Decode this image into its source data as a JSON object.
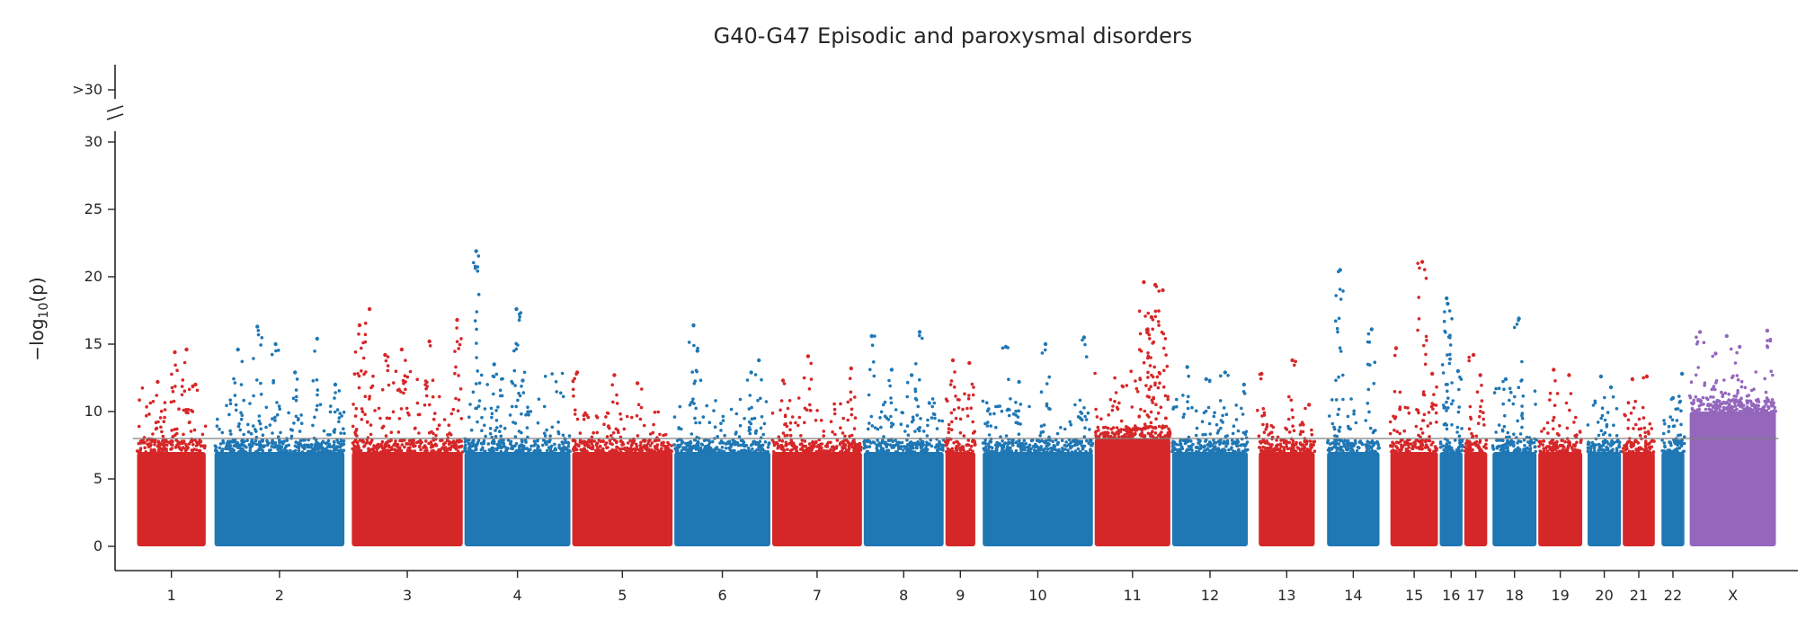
{
  "chart_data": {
    "type": "scatter",
    "subtype": "manhattan",
    "title": "G40-G47 Episodic and paroxysmal disorders",
    "xlabel": "",
    "ylabel": "−log10(p)",
    "ylabel_main": "−log",
    "ylabel_sub": "10",
    "ylabel_tail": "(p)",
    "ylim": [
      0,
      30
    ],
    "yticks": [
      "0",
      "5",
      "10",
      "15",
      "20",
      "25",
      "30"
    ],
    "y_break_label": ">30",
    "threshold": 8,
    "grid": false,
    "colors": {
      "red": "#d62728",
      "blue": "#1f77b4",
      "purple": "#9467bd",
      "threshold_line": "#7f7f7f",
      "axis": "#262626"
    },
    "chromosomes": [
      {
        "label": "1",
        "color": "red",
        "span": [
          0.0,
          1.0
        ],
        "band_max": 7,
        "cloud_max": 12,
        "peaks": [
          [
            0.55,
            14.4
          ],
          [
            0.72,
            14.6
          ],
          [
            0.3,
            12.2
          ],
          [
            0.85,
            12.0
          ]
        ]
      },
      {
        "label": "2",
        "color": "blue",
        "span": [
          1.1,
          2.97
        ],
        "band_max": 7,
        "cloud_max": 11,
        "peaks": [
          [
            0.33,
            16.3
          ],
          [
            0.18,
            14.6
          ],
          [
            0.47,
            15.0
          ],
          [
            0.62,
            12.9
          ],
          [
            0.79,
            15.4
          ],
          [
            0.93,
            12.0
          ]
        ]
      },
      {
        "label": "3",
        "color": "red",
        "span": [
          3.05,
          4.65
        ],
        "band_max": 7,
        "cloud_max": 13,
        "peaks": [
          [
            0.07,
            16.4
          ],
          [
            0.16,
            17.6
          ],
          [
            0.45,
            14.6
          ],
          [
            0.7,
            15.2
          ],
          [
            0.95,
            16.8
          ],
          [
            0.3,
            14.2
          ]
        ]
      },
      {
        "label": "4",
        "color": "blue",
        "span": [
          4.65,
          6.18
        ],
        "band_max": 7,
        "cloud_max": 13,
        "peaks": [
          [
            0.11,
            21.9
          ],
          [
            0.49,
            17.6
          ],
          [
            0.28,
            13.5
          ],
          [
            0.55,
            12.3
          ]
        ]
      },
      {
        "label": "5",
        "color": "red",
        "span": [
          6.18,
          7.63
        ],
        "band_max": 7,
        "cloud_max": 10,
        "peaks": [
          [
            0.05,
            12.9
          ],
          [
            0.42,
            12.7
          ],
          [
            0.65,
            12.1
          ]
        ]
      },
      {
        "label": "6",
        "color": "blue",
        "span": [
          7.63,
          9.02
        ],
        "band_max": 7,
        "cloud_max": 11,
        "peaks": [
          [
            0.2,
            16.4
          ],
          [
            0.24,
            14.5
          ],
          [
            0.88,
            13.8
          ],
          [
            0.8,
            12.9
          ]
        ]
      },
      {
        "label": "7",
        "color": "red",
        "span": [
          9.02,
          10.32
        ],
        "band_max": 7,
        "cloud_max": 11,
        "peaks": [
          [
            0.4,
            14.1
          ],
          [
            0.12,
            12.3
          ],
          [
            0.88,
            13.2
          ]
        ]
      },
      {
        "label": "8",
        "color": "blue",
        "span": [
          10.32,
          11.48
        ],
        "band_max": 7,
        "cloud_max": 11,
        "peaks": [
          [
            0.1,
            15.6
          ],
          [
            0.35,
            13.1
          ],
          [
            0.6,
            12.7
          ],
          [
            0.7,
            15.9
          ]
        ]
      },
      {
        "label": "9",
        "color": "red",
        "span": [
          11.48,
          11.93
        ],
        "band_max": 7,
        "cloud_max": 12,
        "peaks": [
          [
            0.25,
            13.8
          ],
          [
            0.8,
            13.6
          ]
        ]
      },
      {
        "label": "10",
        "color": "blue",
        "span": [
          12.01,
          13.6
        ],
        "band_max": 7,
        "cloud_max": 11,
        "peaks": [
          [
            0.21,
            14.8
          ],
          [
            0.33,
            12.2
          ],
          [
            0.57,
            15.0
          ],
          [
            0.92,
            15.5
          ]
        ]
      },
      {
        "label": "11",
        "color": "red",
        "span": [
          13.6,
          14.7
        ],
        "band_max": 8,
        "cloud_max": 13,
        "peaks": [
          [
            0.65,
            19.6
          ],
          [
            0.8,
            19.4
          ],
          [
            0.75,
            17.0
          ],
          [
            0.7,
            16.1
          ],
          [
            0.9,
            19.0
          ]
        ]
      },
      {
        "label": "12",
        "color": "blue",
        "span": [
          14.7,
          15.8
        ],
        "band_max": 7,
        "cloud_max": 11,
        "peaks": [
          [
            0.2,
            13.3
          ],
          [
            0.45,
            12.4
          ],
          [
            0.7,
            12.9
          ],
          [
            0.95,
            12.0
          ]
        ]
      },
      {
        "label": "13",
        "color": "red",
        "span": [
          15.93,
          16.75
        ],
        "band_max": 7,
        "cloud_max": 10,
        "peaks": [
          [
            0.05,
            12.8
          ],
          [
            0.6,
            13.8
          ],
          [
            0.9,
            10.5
          ]
        ]
      },
      {
        "label": "14",
        "color": "blue",
        "span": [
          16.9,
          17.67
        ],
        "band_max": 7,
        "cloud_max": 11,
        "peaks": [
          [
            0.25,
            20.5
          ],
          [
            0.85,
            16.1
          ]
        ]
      },
      {
        "label": "15",
        "color": "red",
        "span": [
          17.8,
          18.5
        ],
        "band_max": 7,
        "cloud_max": 11,
        "peaks": [
          [
            0.12,
            14.7
          ],
          [
            0.67,
            21.1
          ],
          [
            0.88,
            12.8
          ]
        ]
      },
      {
        "label": "16",
        "color": "blue",
        "span": [
          18.5,
          18.85
        ],
        "band_max": 7,
        "cloud_max": 11,
        "peaks": [
          [
            0.3,
            18.4
          ],
          [
            0.35,
            18.0
          ],
          [
            0.8,
            13.0
          ]
        ]
      },
      {
        "label": "17",
        "color": "red",
        "span": [
          18.85,
          19.2
        ],
        "band_max": 7,
        "cloud_max": 11,
        "peaks": [
          [
            0.4,
            14.2
          ],
          [
            0.7,
            12.7
          ]
        ]
      },
      {
        "label": "18",
        "color": "blue",
        "span": [
          19.25,
          19.9
        ],
        "band_max": 7,
        "cloud_max": 12,
        "peaks": [
          [
            0.6,
            16.9
          ],
          [
            0.3,
            12.4
          ]
        ]
      },
      {
        "label": "19",
        "color": "red",
        "span": [
          19.9,
          20.55
        ],
        "band_max": 7,
        "cloud_max": 10,
        "peaks": [
          [
            0.35,
            13.1
          ],
          [
            0.7,
            12.7
          ]
        ]
      },
      {
        "label": "20",
        "color": "blue",
        "span": [
          20.6,
          21.1
        ],
        "band_max": 7,
        "cloud_max": 11,
        "peaks": [
          [
            0.4,
            12.6
          ],
          [
            0.7,
            11.8
          ]
        ]
      },
      {
        "label": "21",
        "color": "red",
        "span": [
          21.1,
          21.58
        ],
        "band_max": 7,
        "cloud_max": 11,
        "peaks": [
          [
            0.3,
            12.4
          ],
          [
            0.75,
            12.6
          ]
        ]
      },
      {
        "label": "22",
        "color": "blue",
        "span": [
          21.65,
          22.0
        ],
        "band_max": 7,
        "cloud_max": 10,
        "peaks": [
          [
            0.5,
            11.0
          ],
          [
            0.9,
            12.8
          ]
        ]
      },
      {
        "label": "X",
        "color": "purple",
        "span": [
          22.05,
          23.3
        ],
        "band_max": 10,
        "cloud_max": 13,
        "peaks": [
          [
            0.12,
            15.9
          ],
          [
            0.43,
            15.6
          ],
          [
            0.58,
            14.8
          ],
          [
            0.9,
            16.0
          ],
          [
            0.3,
            14.3
          ]
        ]
      }
    ],
    "xlim": [
      -0.3,
      23.6
    ]
  }
}
